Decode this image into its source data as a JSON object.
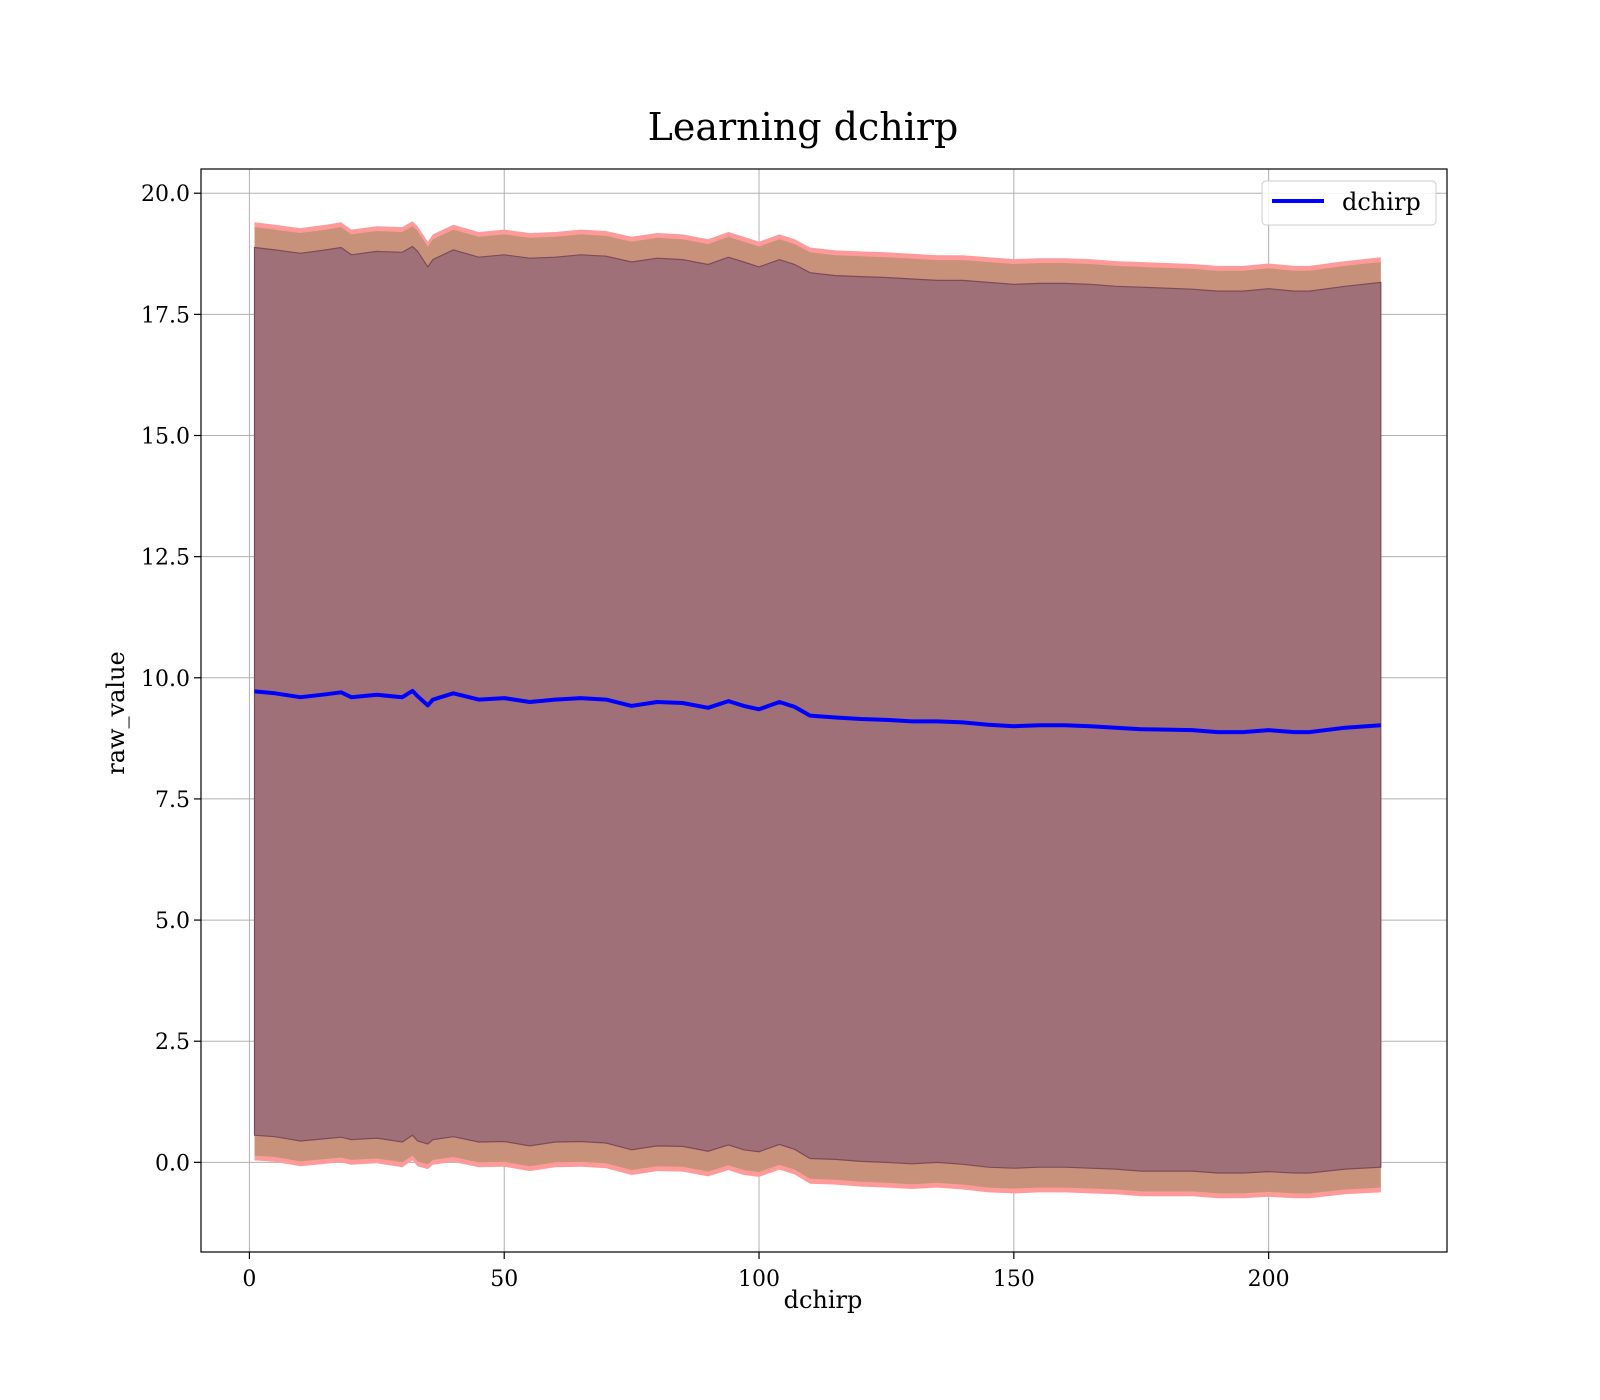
{
  "chart_data": {
    "type": "area",
    "title": "Learning dchirp",
    "xlabel": "dchirp",
    "ylabel": "raw_value",
    "xlim": [
      -9.5,
      235
    ],
    "ylim": [
      -1.85,
      20.5
    ],
    "xticks": [
      0,
      50,
      100,
      150,
      200
    ],
    "xtick_labels": [
      "0",
      "50",
      "100",
      "150",
      "200"
    ],
    "yticks": [
      0.0,
      2.5,
      5.0,
      7.5,
      10.0,
      12.5,
      15.0,
      17.5,
      20.0
    ],
    "ytick_labels": [
      "0.0",
      "2.5",
      "5.0",
      "7.5",
      "10.0",
      "12.5",
      "15.0",
      "17.5",
      "20.0"
    ],
    "grid": true,
    "legend": {
      "position": "top-right",
      "entries": [
        "dchirp"
      ]
    },
    "colors": {
      "line": "#0000ff",
      "outer_band": "#ff9a9a",
      "middle_band": "#c8927a",
      "inner_band": "#a07079",
      "inner_band_edge": "#7d4a5a"
    },
    "x": [
      1,
      5,
      10,
      15,
      18,
      20,
      25,
      30,
      32,
      33,
      35,
      36,
      40,
      45,
      50,
      55,
      60,
      65,
      70,
      75,
      80,
      85,
      90,
      94,
      97,
      100,
      104,
      107,
      110,
      115,
      120,
      125,
      130,
      135,
      140,
      145,
      150,
      155,
      160,
      165,
      170,
      175,
      180,
      185,
      190,
      195,
      200,
      205,
      208,
      215,
      222
    ],
    "series": [
      {
        "name": "dchirp",
        "values": [
          9.72,
          9.68,
          9.6,
          9.66,
          9.7,
          9.6,
          9.65,
          9.6,
          9.73,
          9.62,
          9.43,
          9.55,
          9.68,
          9.55,
          9.58,
          9.5,
          9.55,
          9.58,
          9.55,
          9.42,
          9.5,
          9.48,
          9.38,
          9.52,
          9.42,
          9.35,
          9.5,
          9.4,
          9.22,
          9.18,
          9.15,
          9.13,
          9.1,
          9.1,
          9.08,
          9.03,
          9.0,
          9.02,
          9.02,
          9.0,
          8.97,
          8.94,
          8.93,
          8.92,
          8.88,
          8.88,
          8.92,
          8.88,
          8.88,
          8.97,
          9.02
        ]
      }
    ],
    "bands": [
      {
        "upper": [
          19.4,
          19.35,
          19.28,
          19.35,
          19.4,
          19.25,
          19.32,
          19.3,
          19.42,
          19.32,
          19.0,
          19.15,
          19.35,
          19.2,
          19.25,
          19.18,
          19.2,
          19.25,
          19.22,
          19.1,
          19.18,
          19.15,
          19.05,
          19.2,
          19.1,
          19.0,
          19.15,
          19.05,
          18.88,
          18.82,
          18.8,
          18.78,
          18.75,
          18.72,
          18.72,
          18.68,
          18.64,
          18.66,
          18.66,
          18.64,
          18.6,
          18.58,
          18.56,
          18.54,
          18.5,
          18.5,
          18.55,
          18.5,
          18.5,
          18.6,
          18.68
        ],
        "lower": [
          0.04,
          0.01,
          -0.08,
          -0.03,
          0.0,
          -0.05,
          -0.02,
          -0.1,
          0.04,
          -0.08,
          -0.14,
          -0.05,
          0.01,
          -0.1,
          -0.09,
          -0.18,
          -0.1,
          -0.09,
          -0.12,
          -0.26,
          -0.18,
          -0.19,
          -0.29,
          -0.16,
          -0.26,
          -0.3,
          -0.15,
          -0.25,
          -0.44,
          -0.46,
          -0.5,
          -0.52,
          -0.55,
          -0.52,
          -0.56,
          -0.62,
          -0.64,
          -0.62,
          -0.62,
          -0.64,
          -0.66,
          -0.7,
          -0.7,
          -0.7,
          -0.74,
          -0.74,
          -0.71,
          -0.74,
          -0.74,
          -0.66,
          -0.62
        ]
      },
      {
        "upper": [
          19.3,
          19.25,
          19.18,
          19.25,
          19.3,
          19.15,
          19.22,
          19.2,
          19.32,
          19.22,
          18.9,
          19.05,
          19.25,
          19.1,
          19.15,
          19.08,
          19.1,
          19.15,
          19.12,
          19.0,
          19.08,
          19.05,
          18.95,
          19.1,
          19.0,
          18.9,
          19.05,
          18.95,
          18.78,
          18.72,
          18.7,
          18.68,
          18.65,
          18.62,
          18.62,
          18.58,
          18.54,
          18.56,
          18.56,
          18.54,
          18.5,
          18.48,
          18.46,
          18.44,
          18.4,
          18.4,
          18.45,
          18.4,
          18.4,
          18.5,
          18.58
        ],
        "lower": [
          0.14,
          0.11,
          0.02,
          0.07,
          0.1,
          0.05,
          0.08,
          0.0,
          0.14,
          0.02,
          -0.04,
          0.05,
          0.11,
          0.0,
          0.01,
          -0.08,
          0.0,
          0.01,
          -0.02,
          -0.16,
          -0.08,
          -0.09,
          -0.19,
          -0.06,
          -0.16,
          -0.2,
          -0.05,
          -0.15,
          -0.34,
          -0.36,
          -0.4,
          -0.42,
          -0.45,
          -0.42,
          -0.46,
          -0.52,
          -0.54,
          -0.52,
          -0.52,
          -0.54,
          -0.56,
          -0.6,
          -0.6,
          -0.6,
          -0.64,
          -0.64,
          -0.61,
          -0.64,
          -0.64,
          -0.56,
          -0.52
        ]
      },
      {
        "upper": [
          18.88,
          18.83,
          18.76,
          18.83,
          18.88,
          18.73,
          18.8,
          18.78,
          18.9,
          18.8,
          18.48,
          18.63,
          18.83,
          18.68,
          18.73,
          18.66,
          18.68,
          18.73,
          18.7,
          18.58,
          18.66,
          18.63,
          18.53,
          18.68,
          18.58,
          18.48,
          18.63,
          18.53,
          18.36,
          18.3,
          18.28,
          18.26,
          18.23,
          18.2,
          18.2,
          18.16,
          18.12,
          18.14,
          18.14,
          18.12,
          18.08,
          18.06,
          18.04,
          18.02,
          17.98,
          17.98,
          18.03,
          17.98,
          17.98,
          18.08,
          18.16
        ],
        "lower": [
          0.56,
          0.53,
          0.44,
          0.49,
          0.52,
          0.47,
          0.5,
          0.42,
          0.56,
          0.44,
          0.38,
          0.47,
          0.53,
          0.42,
          0.43,
          0.34,
          0.42,
          0.43,
          0.4,
          0.26,
          0.34,
          0.33,
          0.23,
          0.36,
          0.26,
          0.22,
          0.37,
          0.27,
          0.08,
          0.06,
          0.02,
          0.0,
          -0.03,
          0.0,
          -0.04,
          -0.1,
          -0.12,
          -0.1,
          -0.1,
          -0.12,
          -0.14,
          -0.18,
          -0.18,
          -0.18,
          -0.22,
          -0.22,
          -0.19,
          -0.22,
          -0.22,
          -0.14,
          -0.1
        ]
      }
    ]
  }
}
